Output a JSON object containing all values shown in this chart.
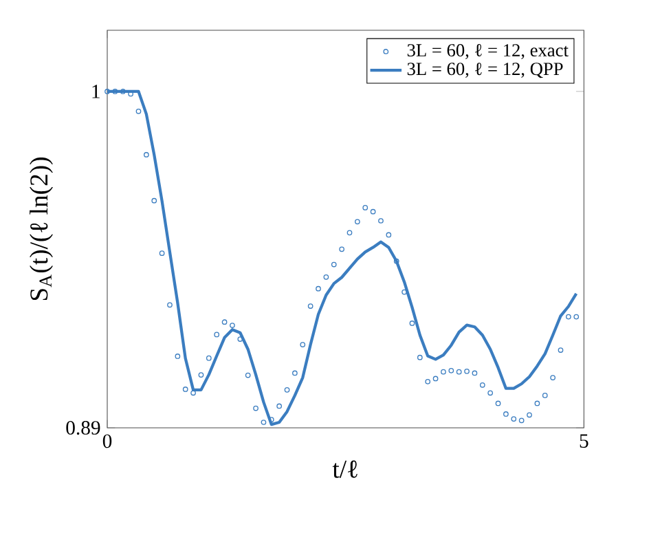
{
  "chart_data": {
    "type": "line",
    "xlabel": "t/ℓ",
    "ylabel": "S$_{A}$(t)/(ℓ ln(2))",
    "x": [
      0,
      0.082,
      0.164,
      0.246,
      0.328,
      0.41,
      0.492,
      0.574,
      0.656,
      0.738,
      0.82,
      0.902,
      0.984,
      1.066,
      1.148,
      1.23,
      1.312,
      1.394,
      1.476,
      1.558,
      1.64,
      1.722,
      1.804,
      1.886,
      1.968,
      2.05,
      2.132,
      2.214,
      2.296,
      2.378,
      2.46,
      2.542,
      2.624,
      2.706,
      2.788,
      2.87,
      2.952,
      3.034,
      3.116,
      3.198,
      3.28,
      3.362,
      3.444,
      3.526,
      3.608,
      3.69,
      3.772,
      3.854,
      3.936,
      4.018,
      4.1,
      4.182,
      4.264,
      4.346,
      4.428,
      4.51,
      4.592,
      4.674,
      4.756,
      4.838,
      4.92
    ],
    "series": [
      {
        "name": "3L = 60, ℓ = 12, exact",
        "type": "scatter",
        "marker": "circle",
        "color": "#3b7dc0",
        "values": [
          1,
          1,
          1,
          0.9992,
          0.9935,
          0.9793,
          0.9643,
          0.9471,
          0.9302,
          0.9134,
          0.9026,
          0.9014,
          0.9073,
          0.9128,
          0.9205,
          0.9246,
          0.9235,
          0.919,
          0.9072,
          0.8964,
          0.8918,
          0.8927,
          0.8971,
          0.9024,
          0.9079,
          0.9172,
          0.9298,
          0.9355,
          0.9393,
          0.9434,
          0.9484,
          0.9538,
          0.9574,
          0.962,
          0.9607,
          0.9577,
          0.9531,
          0.9445,
          0.9344,
          0.9242,
          0.913,
          0.9051,
          0.9061,
          0.9083,
          0.9087,
          0.9083,
          0.9085,
          0.9079,
          0.904,
          0.9014,
          0.898,
          0.8945,
          0.8929,
          0.8924,
          0.8942,
          0.898,
          0.9006,
          0.9064,
          0.9154,
          0.9263,
          0.9263
        ]
      },
      {
        "name": "3L = 60, ℓ = 12, QPP",
        "type": "line",
        "marker": "none",
        "line_style": "solid",
        "color": "#3b7dc0",
        "values": [
          1,
          1,
          1,
          1,
          1,
          0.9926,
          0.9793,
          0.9642,
          0.9475,
          0.9309,
          0.9127,
          0.9024,
          0.9024,
          0.9074,
          0.9135,
          0.9195,
          0.9221,
          0.9211,
          0.9157,
          0.9074,
          0.8984,
          0.8911,
          0.8918,
          0.8953,
          0.9006,
          0.9064,
          0.9172,
          0.9271,
          0.9334,
          0.9372,
          0.9392,
          0.9422,
          0.9452,
          0.9475,
          0.949,
          0.9508,
          0.949,
          0.9445,
          0.9377,
          0.9294,
          0.9203,
          0.9135,
          0.9124,
          0.9138,
          0.917,
          0.9213,
          0.9236,
          0.923,
          0.9203,
          0.9157,
          0.9097,
          0.9029,
          0.9029,
          0.9044,
          0.9067,
          0.9102,
          0.9142,
          0.9203,
          0.9266,
          0.9297,
          0.9339
        ]
      }
    ],
    "xlim": [
      0,
      5
    ],
    "ylim": [
      0.89,
      1.02
    ],
    "xticks": [
      0,
      5
    ],
    "yticks": [
      0.89,
      1
    ],
    "grid": false,
    "legend": "top right"
  }
}
